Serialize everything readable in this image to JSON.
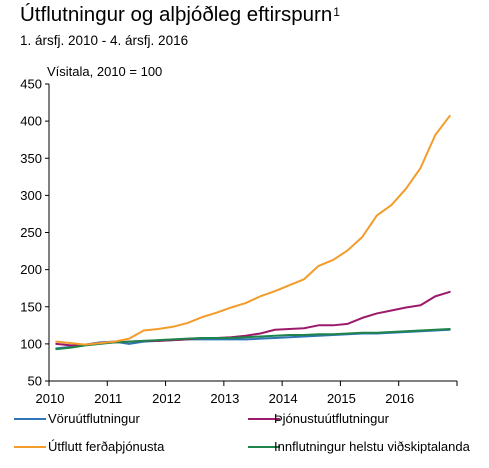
{
  "chart_data": {
    "type": "line",
    "title": "Útflutningur og alþjóðleg eftirspurn",
    "title_sup": "1",
    "subtitle": "1. ársfj. 2010 - 4. ársfj. 2016",
    "ylabel": "Vísitala, 2010 = 100",
    "xlabel": "",
    "ylim": [
      50,
      450
    ],
    "yticks": [
      50,
      100,
      150,
      200,
      250,
      300,
      350,
      400,
      450
    ],
    "xlim": [
      2010,
      2017
    ],
    "xticks": [
      "2010",
      "2011",
      "2012",
      "2013",
      "2014",
      "2015",
      "2016"
    ],
    "grid": false,
    "legend_position": "bottom",
    "x": [
      "2010Q1",
      "2010Q2",
      "2010Q3",
      "2010Q4",
      "2011Q1",
      "2011Q2",
      "2011Q3",
      "2011Q4",
      "2012Q1",
      "2012Q2",
      "2012Q3",
      "2012Q4",
      "2013Q1",
      "2013Q2",
      "2013Q3",
      "2013Q4",
      "2014Q1",
      "2014Q2",
      "2014Q3",
      "2014Q4",
      "2015Q1",
      "2015Q2",
      "2015Q3",
      "2015Q4",
      "2016Q1",
      "2016Q2",
      "2016Q3",
      "2016Q4"
    ],
    "series": [
      {
        "name": "Vöruútflutningur",
        "color": "#2e75b6",
        "values": [
          94,
          96,
          99,
          102,
          103,
          100,
          103,
          104,
          105,
          106,
          106,
          106,
          106,
          106,
          107,
          108,
          109,
          110,
          111,
          112,
          113,
          114,
          114,
          115,
          116,
          117,
          118,
          119
        ]
      },
      {
        "name": "Þjónustuútflutningur",
        "color": "#9c1a6a",
        "values": [
          100,
          98,
          99,
          101,
          102,
          103,
          104,
          104,
          105,
          106,
          108,
          108,
          109,
          111,
          114,
          119,
          120,
          121,
          125,
          125,
          127,
          135,
          141,
          145,
          149,
          152,
          164,
          170
        ]
      },
      {
        "name": "Útflutt ferðaþjónusta",
        "color": "#f39c2b",
        "values": [
          103,
          101,
          99,
          101,
          103,
          107,
          118,
          120,
          123,
          128,
          136,
          142,
          149,
          155,
          164,
          171,
          179,
          187,
          205,
          213,
          226,
          244,
          273,
          287,
          309,
          337,
          381,
          407
        ]
      },
      {
        "name": "Innflutningur helstu viðskiptalanda",
        "color": "#1e8449",
        "values": [
          93,
          95,
          98,
          100,
          102,
          103,
          104,
          105,
          106,
          107,
          108,
          108,
          108,
          109,
          110,
          111,
          112,
          112,
          113,
          113,
          114,
          115,
          115,
          116,
          117,
          118,
          119,
          120
        ]
      }
    ]
  }
}
